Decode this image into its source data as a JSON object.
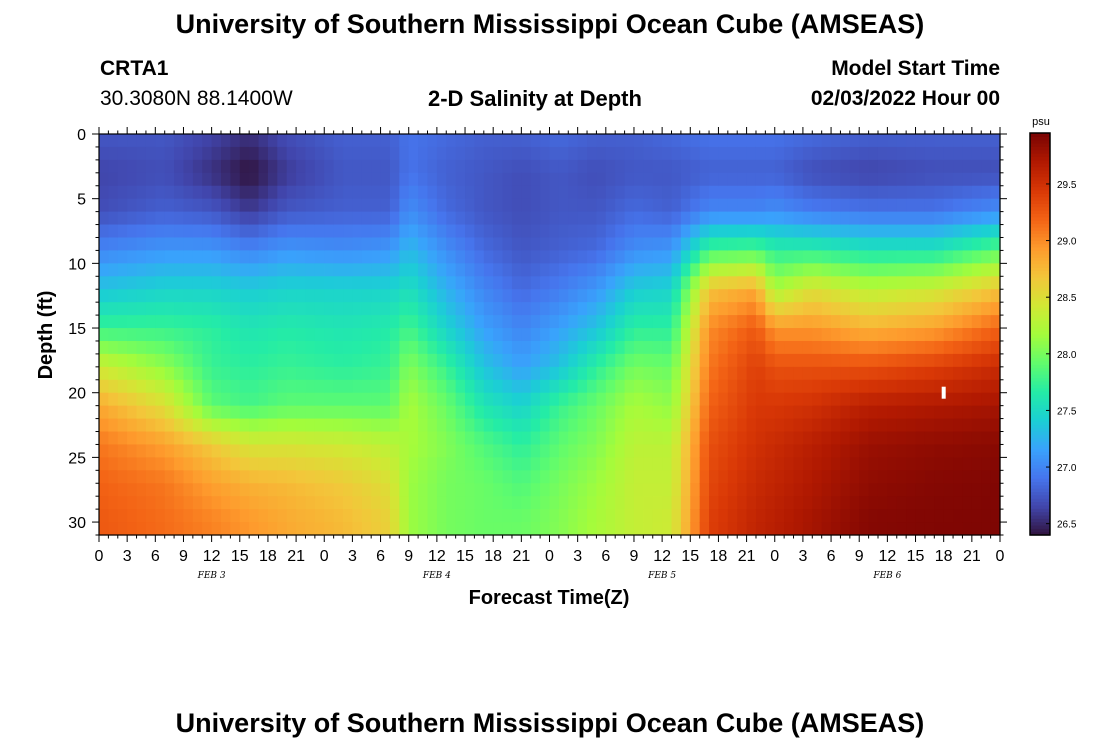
{
  "page": {
    "title_top": "University of Southern Mississippi Ocean Cube (AMSEAS)",
    "title_bottom": "University of Southern Mississippi Ocean Cube (AMSEAS)",
    "station_id": "CRTA1",
    "station_coords": "30.3080N  88.1400W",
    "model_start_label": "Model Start Time",
    "model_start_value": "02/03/2022 Hour 00"
  },
  "chart_data": {
    "type": "heatmap",
    "title": "2-D Salinity at Depth",
    "xlabel": "Forecast Time(Z)",
    "ylabel": "Depth (ft)",
    "x_range_hours": [
      0,
      96
    ],
    "ylim": [
      0,
      31
    ],
    "x_ticks": [
      {
        "hour": 0,
        "label": "0"
      },
      {
        "hour": 3,
        "label": "3"
      },
      {
        "hour": 6,
        "label": "6"
      },
      {
        "hour": 9,
        "label": "9"
      },
      {
        "hour": 12,
        "label": "12"
      },
      {
        "hour": 15,
        "label": "15"
      },
      {
        "hour": 18,
        "label": "18"
      },
      {
        "hour": 21,
        "label": "21"
      },
      {
        "hour": 24,
        "label": "0"
      },
      {
        "hour": 27,
        "label": "3"
      },
      {
        "hour": 30,
        "label": "6"
      },
      {
        "hour": 33,
        "label": "9"
      },
      {
        "hour": 36,
        "label": "12"
      },
      {
        "hour": 39,
        "label": "15"
      },
      {
        "hour": 42,
        "label": "18"
      },
      {
        "hour": 45,
        "label": "21"
      },
      {
        "hour": 48,
        "label": "0"
      },
      {
        "hour": 51,
        "label": "3"
      },
      {
        "hour": 54,
        "label": "6"
      },
      {
        "hour": 57,
        "label": "9"
      },
      {
        "hour": 60,
        "label": "12"
      },
      {
        "hour": 63,
        "label": "15"
      },
      {
        "hour": 66,
        "label": "18"
      },
      {
        "hour": 69,
        "label": "21"
      },
      {
        "hour": 72,
        "label": "0"
      },
      {
        "hour": 75,
        "label": "3"
      },
      {
        "hour": 78,
        "label": "6"
      },
      {
        "hour": 81,
        "label": "9"
      },
      {
        "hour": 84,
        "label": "12"
      },
      {
        "hour": 87,
        "label": "15"
      },
      {
        "hour": 90,
        "label": "18"
      },
      {
        "hour": 93,
        "label": "21"
      },
      {
        "hour": 96,
        "label": "0"
      }
    ],
    "date_labels": [
      {
        "hour": 12,
        "label": "FEB 3"
      },
      {
        "hour": 36,
        "label": "FEB 4"
      },
      {
        "hour": 60,
        "label": "FEB 5"
      },
      {
        "hour": 84,
        "label": "FEB 6"
      }
    ],
    "y_ticks": [
      0,
      5,
      10,
      15,
      20,
      25,
      30
    ],
    "colorbar": {
      "unit": "psu",
      "range": [
        26.4,
        29.95
      ],
      "ticks": [
        "26.5",
        "27.0",
        "27.5",
        "28.0",
        "28.5",
        "29.0",
        "29.5"
      ],
      "colors": [
        "#30123b",
        "#4145ab",
        "#4675ed",
        "#39a2fc",
        "#1bcfd4",
        "#24eca6",
        "#61fc6c",
        "#a4fc3b",
        "#d1e834",
        "#f3c63a",
        "#fe9b2d",
        "#f36315",
        "#d93806",
        "#b11901",
        "#7a0403"
      ]
    },
    "column_profiles": {
      "depths_ft": [
        0,
        3,
        6,
        9,
        12,
        15,
        18,
        21,
        24,
        27,
        30,
        31
      ],
      "columns": [
        {
          "hour": 0,
          "values": [
            26.75,
            26.65,
            26.7,
            27.0,
            27.35,
            27.75,
            28.4,
            28.85,
            29.1,
            29.2,
            29.25,
            29.25
          ]
        },
        {
          "hour": 7,
          "values": [
            26.75,
            26.7,
            26.8,
            27.1,
            27.45,
            27.75,
            28.1,
            28.5,
            28.9,
            29.1,
            29.15,
            29.15
          ]
        },
        {
          "hour": 12,
          "values": [
            26.65,
            26.55,
            26.75,
            27.1,
            27.45,
            27.7,
            27.75,
            27.9,
            28.65,
            28.9,
            29.05,
            29.05
          ]
        },
        {
          "hour": 16,
          "values": [
            26.55,
            26.4,
            26.6,
            27.0,
            27.4,
            27.6,
            27.7,
            27.8,
            28.45,
            28.8,
            28.95,
            28.95
          ]
        },
        {
          "hour": 20,
          "values": [
            26.7,
            26.6,
            26.75,
            27.1,
            27.45,
            27.65,
            27.75,
            27.9,
            28.45,
            28.75,
            28.85,
            28.85
          ]
        },
        {
          "hour": 26,
          "values": [
            26.8,
            26.75,
            26.8,
            27.05,
            27.45,
            27.6,
            27.7,
            27.9,
            28.4,
            28.65,
            28.75,
            28.75
          ]
        },
        {
          "hour": 31,
          "values": [
            26.8,
            26.75,
            26.8,
            27.1,
            27.45,
            27.65,
            27.75,
            27.9,
            28.3,
            28.5,
            28.6,
            28.6
          ]
        },
        {
          "hour": 33,
          "values": [
            26.9,
            26.9,
            27.05,
            27.3,
            27.55,
            27.8,
            28.05,
            28.2,
            28.2,
            28.15,
            28.15,
            28.15
          ]
        },
        {
          "hour": 37,
          "values": [
            26.85,
            26.8,
            26.85,
            27.05,
            27.25,
            27.45,
            27.75,
            27.95,
            28.05,
            28.0,
            28.0,
            28.0
          ]
        },
        {
          "hour": 41,
          "values": [
            26.8,
            26.75,
            26.75,
            26.85,
            27.0,
            27.15,
            27.35,
            27.6,
            27.85,
            27.95,
            27.95,
            27.95
          ]
        },
        {
          "hour": 45,
          "values": [
            26.8,
            26.7,
            26.7,
            26.75,
            26.85,
            27.0,
            27.15,
            27.45,
            27.7,
            27.85,
            27.95,
            27.95
          ]
        },
        {
          "hour": 49,
          "values": [
            26.85,
            26.75,
            26.75,
            26.8,
            26.95,
            27.15,
            27.35,
            27.75,
            27.9,
            28.0,
            28.05,
            28.05
          ]
        },
        {
          "hour": 53,
          "values": [
            26.8,
            26.7,
            26.75,
            26.85,
            27.1,
            27.35,
            27.7,
            27.95,
            28.05,
            28.15,
            28.2,
            28.2
          ]
        },
        {
          "hour": 57,
          "values": [
            26.8,
            26.75,
            26.85,
            27.05,
            27.4,
            27.7,
            28.0,
            28.2,
            28.3,
            28.35,
            28.35,
            28.35
          ]
        },
        {
          "hour": 61,
          "values": [
            26.85,
            26.75,
            26.8,
            27.1,
            27.45,
            27.7,
            27.95,
            28.1,
            28.3,
            28.35,
            28.4,
            28.4
          ]
        },
        {
          "hour": 65,
          "values": [
            26.9,
            26.8,
            27.0,
            27.8,
            28.7,
            29.0,
            29.1,
            29.2,
            29.3,
            29.35,
            29.4,
            29.4
          ]
        },
        {
          "hour": 70,
          "values": [
            26.9,
            26.8,
            27.0,
            27.85,
            28.85,
            29.25,
            29.4,
            29.45,
            29.5,
            29.55,
            29.6,
            29.6
          ]
        },
        {
          "hour": 72,
          "values": [
            26.9,
            26.8,
            27.05,
            27.7,
            28.2,
            28.95,
            29.3,
            29.45,
            29.55,
            29.6,
            29.65,
            29.65
          ]
        },
        {
          "hour": 76,
          "values": [
            26.85,
            26.7,
            26.95,
            27.7,
            28.5,
            28.95,
            29.3,
            29.5,
            29.65,
            29.7,
            29.75,
            29.75
          ]
        },
        {
          "hour": 82,
          "values": [
            26.8,
            26.65,
            26.9,
            27.6,
            28.3,
            28.8,
            29.3,
            29.65,
            29.8,
            29.85,
            29.9,
            29.9
          ]
        },
        {
          "hour": 89,
          "values": [
            26.8,
            26.7,
            26.9,
            27.6,
            28.4,
            28.9,
            29.4,
            29.7,
            29.85,
            29.9,
            29.92,
            29.92
          ]
        },
        {
          "hour": 96,
          "values": [
            26.8,
            26.7,
            27.05,
            27.9,
            28.7,
            29.2,
            29.55,
            29.75,
            29.88,
            29.92,
            29.93,
            29.93
          ]
        }
      ]
    },
    "marker": {
      "hour": 90,
      "depth_ft": 20
    }
  }
}
